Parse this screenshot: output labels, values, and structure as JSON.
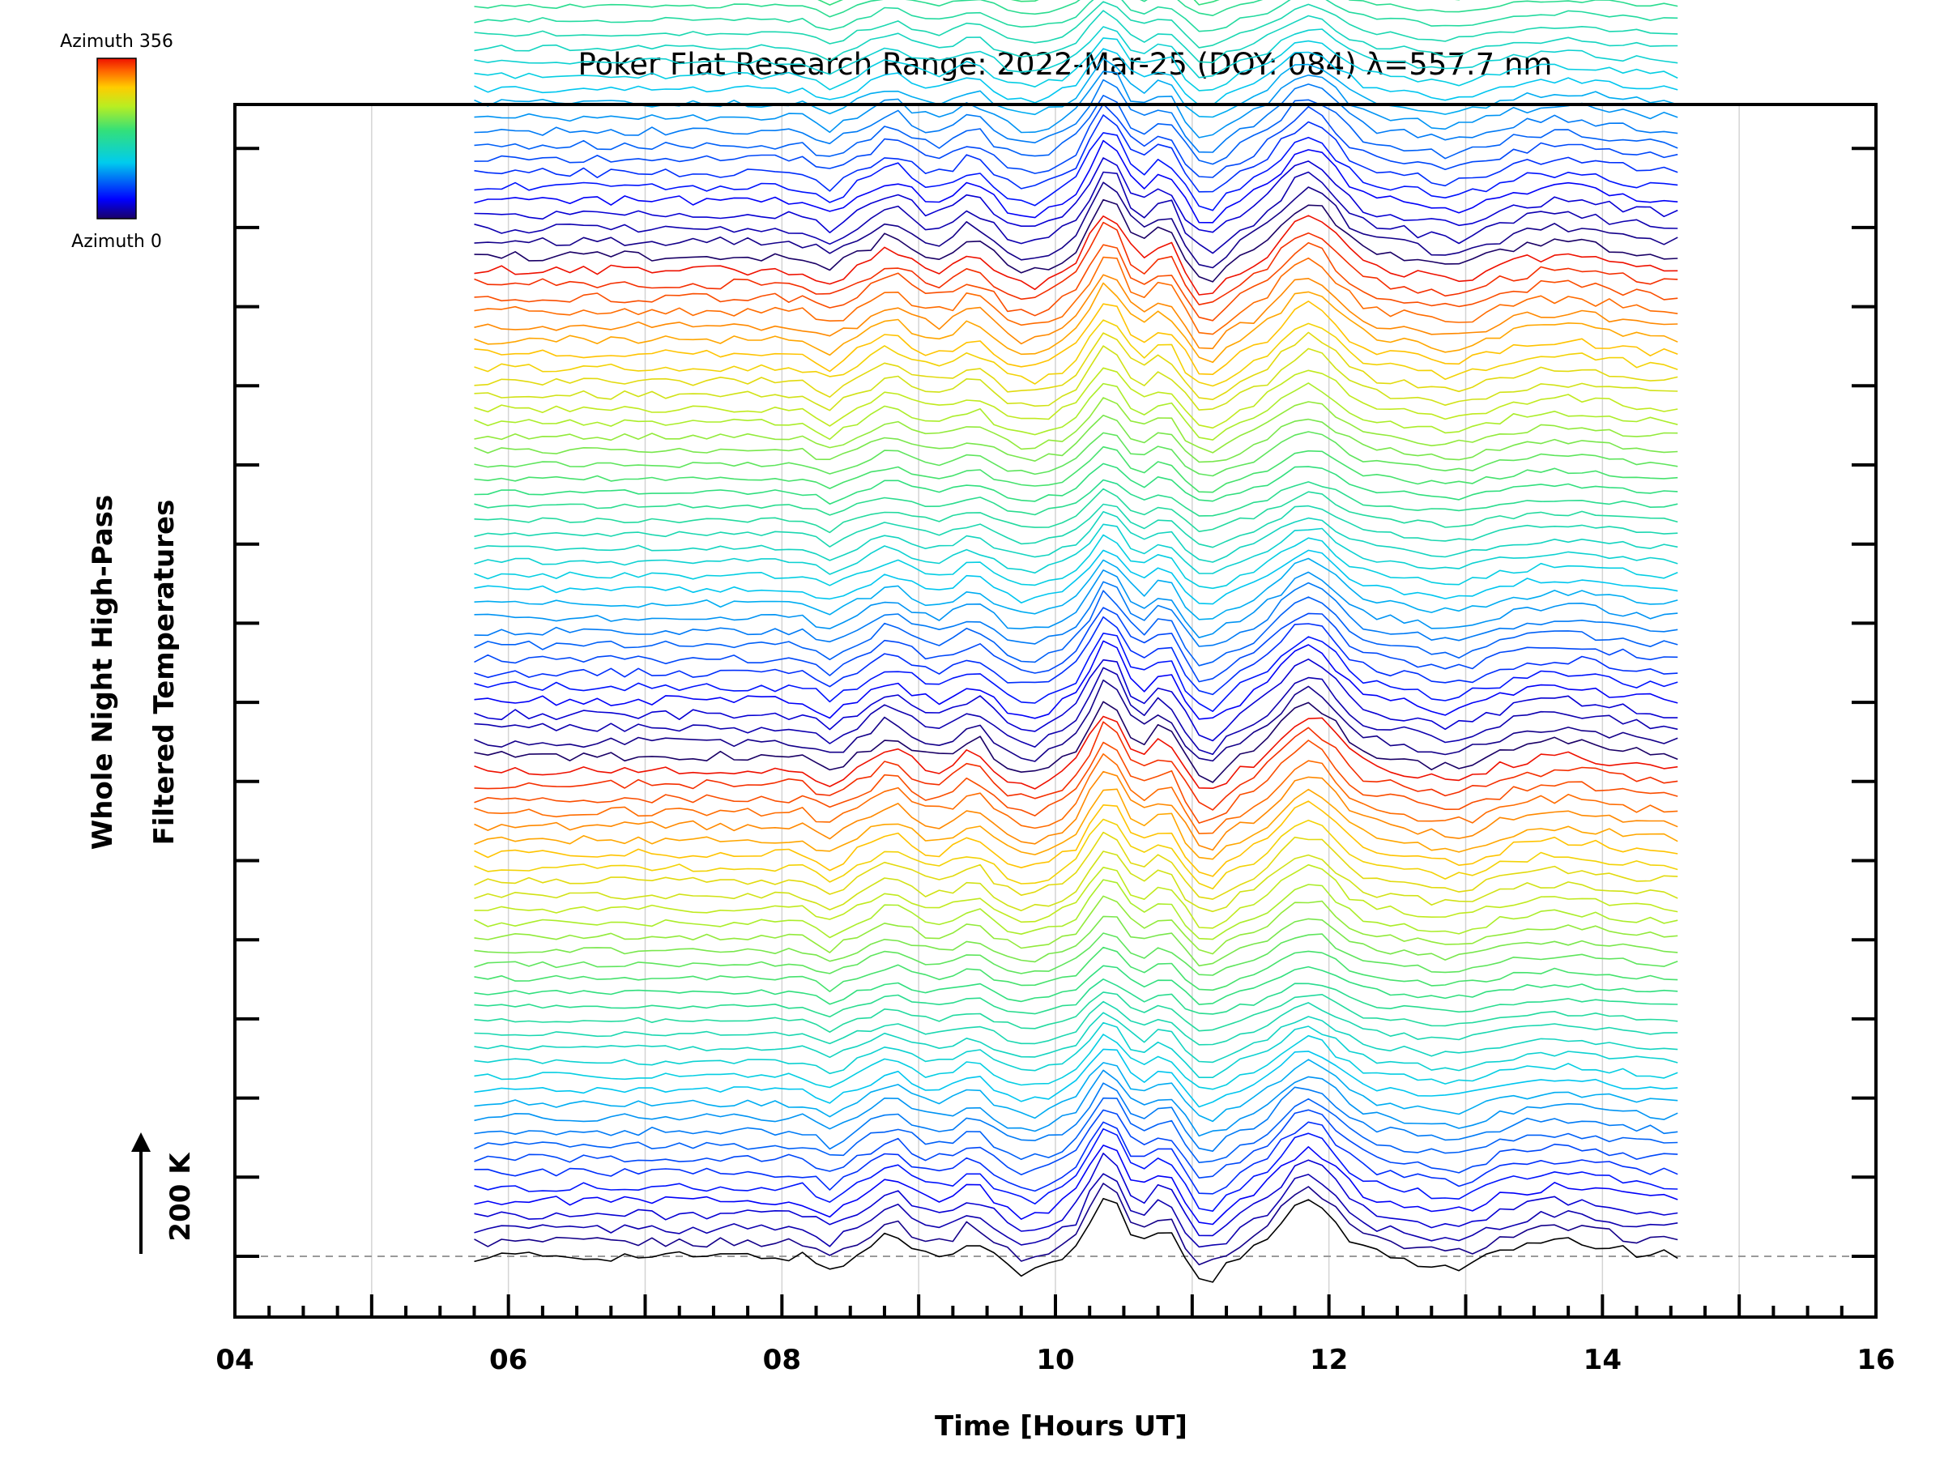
{
  "chart_data": {
    "type": "line",
    "title": "Poker Flat Research Range: 2022-Mar-25 (DOY: 084) λ=557.7 nm",
    "xlabel": "Time [Hours UT]",
    "ylabel_line1": "Whole Night High-Pass",
    "ylabel_line2": "Filtered Temperatures",
    "x_range": [
      4,
      16
    ],
    "x_ticks": [
      "04",
      "06",
      "08",
      "10",
      "12",
      "14",
      "16"
    ],
    "vertical_gridlines_hours": [
      5,
      6,
      7,
      8,
      9,
      10,
      11,
      12,
      13,
      14,
      15
    ],
    "scale_bar_label": "200 K",
    "scale_bar_kelvin": 200,
    "colorbar": {
      "top_label": "Azimuth 356",
      "bottom_label": "Azimuth 0",
      "colormap": "rainbow",
      "min": 0,
      "max": 356
    },
    "data_time_range": [
      5.75,
      14.55
    ],
    "num_azimuth_traces": 180,
    "stack_spacing_kelvin": 35,
    "baseline_style": "dashed-gray",
    "grid": true
  }
}
